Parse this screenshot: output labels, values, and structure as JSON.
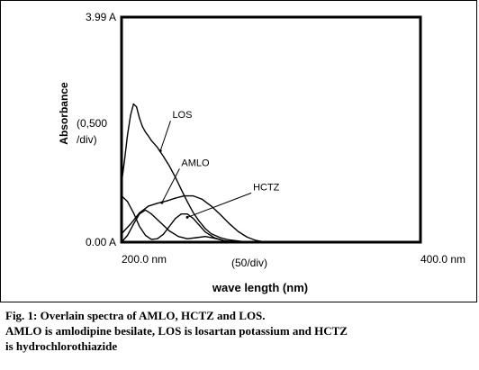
{
  "chart_data": {
    "type": "line",
    "xlabel": "wave length (nm)",
    "ylabel": "Absorbance",
    "y_scale_label": [
      "(0,500",
      "/div)"
    ],
    "x_scale_label": "(50/div)",
    "y_ticks": [
      {
        "value": 0.0,
        "label": "0.00 A"
      },
      {
        "value": 3.99,
        "label": "3.99 A"
      }
    ],
    "x_ticks": [
      {
        "value": 200,
        "label": "200.0 nm"
      },
      {
        "value": 400,
        "label": "400.0 nm"
      }
    ],
    "xlim": [
      200,
      400
    ],
    "ylim": [
      0,
      3.99
    ],
    "grid": false,
    "series": [
      {
        "name": "LOS",
        "color": "#000000",
        "x": [
          200,
          202,
          204,
          206,
          208,
          210,
          212,
          214,
          216,
          218,
          220,
          224,
          228,
          232,
          236,
          240,
          244,
          248,
          252,
          256,
          260,
          266,
          272,
          278,
          284
        ],
        "y": [
          1.05,
          1.45,
          1.9,
          2.25,
          2.45,
          2.4,
          2.2,
          2.05,
          1.95,
          1.88,
          1.8,
          1.68,
          1.52,
          1.35,
          1.15,
          0.93,
          0.72,
          0.52,
          0.37,
          0.24,
          0.15,
          0.08,
          0.04,
          0.02,
          0.0
        ]
      },
      {
        "name": "AMLO",
        "color": "#000000",
        "x": [
          200,
          206,
          212,
          218,
          224,
          230,
          236,
          242,
          248,
          254,
          260,
          266,
          272,
          278,
          284,
          290,
          296
        ],
        "y": [
          0.15,
          0.32,
          0.52,
          0.64,
          0.69,
          0.73,
          0.78,
          0.82,
          0.82,
          0.76,
          0.64,
          0.49,
          0.33,
          0.19,
          0.09,
          0.03,
          0.0
        ]
      },
      {
        "name": "HCTZ",
        "color": "#000000",
        "x": [
          200,
          204,
          208,
          212,
          216,
          220,
          224,
          228,
          232,
          236,
          240,
          244,
          248,
          252,
          256,
          262,
          268,
          274,
          280,
          286,
          292
        ],
        "y": [
          0.82,
          0.72,
          0.52,
          0.28,
          0.12,
          0.05,
          0.06,
          0.14,
          0.28,
          0.42,
          0.5,
          0.5,
          0.42,
          0.3,
          0.18,
          0.08,
          0.03,
          0.01,
          0.0,
          0.0,
          0.0
        ]
      },
      {
        "name": "",
        "color": "#000000",
        "x": [
          200,
          204,
          208,
          212,
          216,
          220,
          226,
          232,
          238,
          244,
          250,
          256,
          262,
          268,
          274
        ],
        "y": [
          0.0,
          0.12,
          0.32,
          0.5,
          0.57,
          0.5,
          0.35,
          0.2,
          0.1,
          0.06,
          0.08,
          0.1,
          0.07,
          0.03,
          0.0
        ]
      }
    ],
    "annotations": [
      {
        "text": "LOS",
        "target_x": 226,
        "target_y": 1.62,
        "label_x": 234,
        "label_y": 2.2
      },
      {
        "text": "AMLO",
        "target_x": 227,
        "target_y": 0.7,
        "label_x": 240,
        "label_y": 1.35
      },
      {
        "text": "HCTZ",
        "target_x": 244,
        "target_y": 0.44,
        "label_x": 288,
        "label_y": 0.92
      }
    ]
  },
  "caption": {
    "title": "Fig. 1: Overlain spectra of AMLO, HCTZ and LOS.",
    "note_line1": "AMLO is amlodipine besilate, LOS is losartan potassium and HCTZ",
    "note_line2": "is hydrochlorothiazide"
  }
}
